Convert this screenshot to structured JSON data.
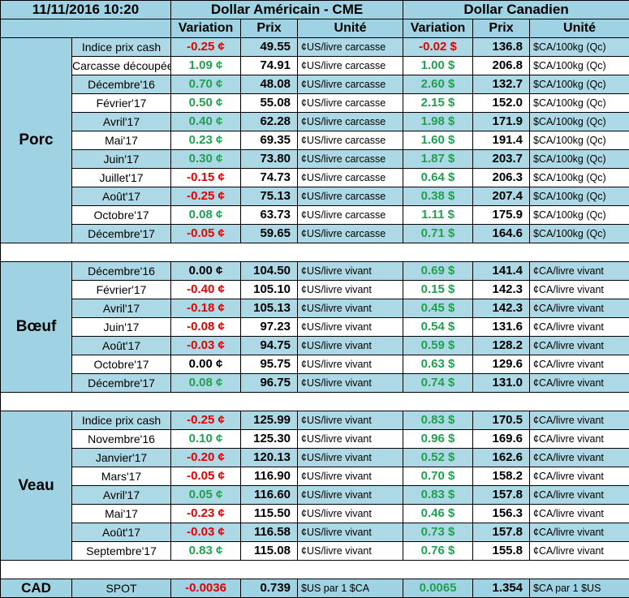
{
  "header": {
    "date": "11/11/2016 10:20",
    "usd_title": "Dollar Américain - CME",
    "cad_title": "Dollar Canadien",
    "col_variation": "Variation",
    "col_prix": "Prix",
    "col_unite": "Unité"
  },
  "colors": {
    "positive": "#22a050",
    "negative": "#e60000",
    "header_bg": "#9fd3e3",
    "row_alt": "#add9e6"
  },
  "sections": [
    {
      "name": "Porc",
      "rows": [
        {
          "label": "Indice prix cash",
          "us_var": "-0.25 ¢",
          "us_sign": "neg",
          "us_prix": "49.55",
          "us_unit": "¢US/livre carcasse",
          "ca_var": "-0.02 $",
          "ca_sign": "neg",
          "ca_prix": "136.8",
          "ca_unit": "$CA/100kg (Qc)"
        },
        {
          "label": "Carcasse découpée",
          "us_var": "1.09 ¢",
          "us_sign": "pos",
          "us_prix": "74.91",
          "us_unit": "¢US/livre carcasse",
          "ca_var": "1.00 $",
          "ca_sign": "pos",
          "ca_prix": "206.8",
          "ca_unit": "$CA/100kg (Qc)"
        },
        {
          "label": "Décembre'16",
          "us_var": "0.70 ¢",
          "us_sign": "pos",
          "us_prix": "48.08",
          "us_unit": "¢US/livre carcasse",
          "ca_var": "2.60 $",
          "ca_sign": "pos",
          "ca_prix": "132.7",
          "ca_unit": "$CA/100kg (Qc)"
        },
        {
          "label": "Février'17",
          "us_var": "0.50 ¢",
          "us_sign": "pos",
          "us_prix": "55.08",
          "us_unit": "¢US/livre carcasse",
          "ca_var": "2.15 $",
          "ca_sign": "pos",
          "ca_prix": "152.0",
          "ca_unit": "$CA/100kg (Qc)"
        },
        {
          "label": "Avril'17",
          "us_var": "0.40 ¢",
          "us_sign": "pos",
          "us_prix": "62.28",
          "us_unit": "¢US/livre carcasse",
          "ca_var": "1.98 $",
          "ca_sign": "pos",
          "ca_prix": "171.9",
          "ca_unit": "$CA/100kg (Qc)"
        },
        {
          "label": "Mai'17",
          "us_var": "0.23 ¢",
          "us_sign": "pos",
          "us_prix": "69.35",
          "us_unit": "¢US/livre carcasse",
          "ca_var": "1.60 $",
          "ca_sign": "pos",
          "ca_prix": "191.4",
          "ca_unit": "$CA/100kg (Qc)"
        },
        {
          "label": "Juin'17",
          "us_var": "0.30 ¢",
          "us_sign": "pos",
          "us_prix": "73.80",
          "us_unit": "¢US/livre carcasse",
          "ca_var": "1.87 $",
          "ca_sign": "pos",
          "ca_prix": "203.7",
          "ca_unit": "$CA/100kg (Qc)"
        },
        {
          "label": "Juillet'17",
          "us_var": "-0.15 ¢",
          "us_sign": "neg",
          "us_prix": "74.73",
          "us_unit": "¢US/livre carcasse",
          "ca_var": "0.64 $",
          "ca_sign": "pos",
          "ca_prix": "206.3",
          "ca_unit": "$CA/100kg (Qc)"
        },
        {
          "label": "Août'17",
          "us_var": "-0.25 ¢",
          "us_sign": "neg",
          "us_prix": "75.13",
          "us_unit": "¢US/livre carcasse",
          "ca_var": "0.38 $",
          "ca_sign": "pos",
          "ca_prix": "207.4",
          "ca_unit": "$CA/100kg (Qc)"
        },
        {
          "label": "Octobre'17",
          "us_var": "0.08 ¢",
          "us_sign": "pos",
          "us_prix": "63.73",
          "us_unit": "¢US/livre carcasse",
          "ca_var": "1.11 $",
          "ca_sign": "pos",
          "ca_prix": "175.9",
          "ca_unit": "$CA/100kg (Qc)"
        },
        {
          "label": "Décembre'17",
          "us_var": "-0.05 ¢",
          "us_sign": "neg",
          "us_prix": "59.65",
          "us_unit": "¢US/livre carcasse",
          "ca_var": "0.71 $",
          "ca_sign": "pos",
          "ca_prix": "164.6",
          "ca_unit": "$CA/100kg (Qc)"
        }
      ]
    },
    {
      "name": "Bœuf",
      "rows": [
        {
          "label": "Décembre'16",
          "us_var": "0.00 ¢",
          "us_sign": "zero",
          "us_prix": "104.50",
          "us_unit": "¢US/livre vivant",
          "ca_var": "0.69 $",
          "ca_sign": "pos",
          "ca_prix": "141.4",
          "ca_unit": "¢CA/livre vivant"
        },
        {
          "label": "Février'17",
          "us_var": "-0.40 ¢",
          "us_sign": "neg",
          "us_prix": "105.10",
          "us_unit": "¢US/livre vivant",
          "ca_var": "0.15 $",
          "ca_sign": "pos",
          "ca_prix": "142.3",
          "ca_unit": "¢CA/livre vivant"
        },
        {
          "label": "Avril'17",
          "us_var": "-0.18 ¢",
          "us_sign": "neg",
          "us_prix": "105.13",
          "us_unit": "¢US/livre vivant",
          "ca_var": "0.45 $",
          "ca_sign": "pos",
          "ca_prix": "142.3",
          "ca_unit": "¢CA/livre vivant"
        },
        {
          "label": "Juin'17",
          "us_var": "-0.08 ¢",
          "us_sign": "neg",
          "us_prix": "97.23",
          "us_unit": "¢US/livre vivant",
          "ca_var": "0.54 $",
          "ca_sign": "pos",
          "ca_prix": "131.6",
          "ca_unit": "¢CA/livre vivant"
        },
        {
          "label": "Août'17",
          "us_var": "-0.03 ¢",
          "us_sign": "neg",
          "us_prix": "94.75",
          "us_unit": "¢US/livre vivant",
          "ca_var": "0.59 $",
          "ca_sign": "pos",
          "ca_prix": "128.2",
          "ca_unit": "¢CA/livre vivant"
        },
        {
          "label": "Octobre'17",
          "us_var": "0.00 ¢",
          "us_sign": "zero",
          "us_prix": "95.75",
          "us_unit": "¢US/livre vivant",
          "ca_var": "0.63 $",
          "ca_sign": "pos",
          "ca_prix": "129.6",
          "ca_unit": "¢CA/livre vivant"
        },
        {
          "label": "Décembre'17",
          "us_var": "0.08 ¢",
          "us_sign": "pos",
          "us_prix": "96.75",
          "us_unit": "¢US/livre vivant",
          "ca_var": "0.74 $",
          "ca_sign": "pos",
          "ca_prix": "131.0",
          "ca_unit": "¢CA/livre vivant"
        }
      ]
    },
    {
      "name": "Veau",
      "rows": [
        {
          "label": "Indice prix cash",
          "us_var": "-0.25 ¢",
          "us_sign": "neg",
          "us_prix": "125.99",
          "us_unit": "¢US/livre vivant",
          "ca_var": "0.83 $",
          "ca_sign": "pos",
          "ca_prix": "170.5",
          "ca_unit": "¢CA/livre vivant"
        },
        {
          "label": "Novembre'16",
          "us_var": "0.10 ¢",
          "us_sign": "pos",
          "us_prix": "125.30",
          "us_unit": "¢US/livre vivant",
          "ca_var": "0.96 $",
          "ca_sign": "pos",
          "ca_prix": "169.6",
          "ca_unit": "¢CA/livre vivant"
        },
        {
          "label": "Janvier'17",
          "us_var": "-0.20 ¢",
          "us_sign": "neg",
          "us_prix": "120.13",
          "us_unit": "¢US/livre vivant",
          "ca_var": "0.52 $",
          "ca_sign": "pos",
          "ca_prix": "162.6",
          "ca_unit": "¢CA/livre vivant"
        },
        {
          "label": "Mars'17",
          "us_var": "-0.05 ¢",
          "us_sign": "neg",
          "us_prix": "116.90",
          "us_unit": "¢US/livre vivant",
          "ca_var": "0.70 $",
          "ca_sign": "pos",
          "ca_prix": "158.2",
          "ca_unit": "¢CA/livre vivant"
        },
        {
          "label": "Avril'17",
          "us_var": "0.05 ¢",
          "us_sign": "pos",
          "us_prix": "116.60",
          "us_unit": "¢US/livre vivant",
          "ca_var": "0.83 $",
          "ca_sign": "pos",
          "ca_prix": "157.8",
          "ca_unit": "¢CA/livre vivant"
        },
        {
          "label": "Mai'17",
          "us_var": "-0.23 ¢",
          "us_sign": "neg",
          "us_prix": "115.50",
          "us_unit": "¢US/livre vivant",
          "ca_var": "0.46 $",
          "ca_sign": "pos",
          "ca_prix": "156.3",
          "ca_unit": "¢CA/livre vivant"
        },
        {
          "label": "Août'17",
          "us_var": "-0.03 ¢",
          "us_sign": "neg",
          "us_prix": "116.58",
          "us_unit": "¢US/livre vivant",
          "ca_var": "0.73 $",
          "ca_sign": "pos",
          "ca_prix": "157.8",
          "ca_unit": "¢CA/livre vivant"
        },
        {
          "label": "Septembre'17",
          "us_var": "0.83 ¢",
          "us_sign": "pos",
          "us_prix": "115.08",
          "us_unit": "¢US/livre vivant",
          "ca_var": "0.76 $",
          "ca_sign": "pos",
          "ca_prix": "155.8",
          "ca_unit": "¢CA/livre vivant"
        }
      ]
    }
  ],
  "cad": {
    "name": "CAD",
    "label": "SPOT",
    "us_var": "-0.0036",
    "us_sign": "neg",
    "us_prix": "0.739",
    "us_unit": "$US par 1 $CA",
    "ca_var": "0.0065",
    "ca_sign": "pos",
    "ca_prix": "1.354",
    "ca_unit": "$CA par 1 $US"
  }
}
